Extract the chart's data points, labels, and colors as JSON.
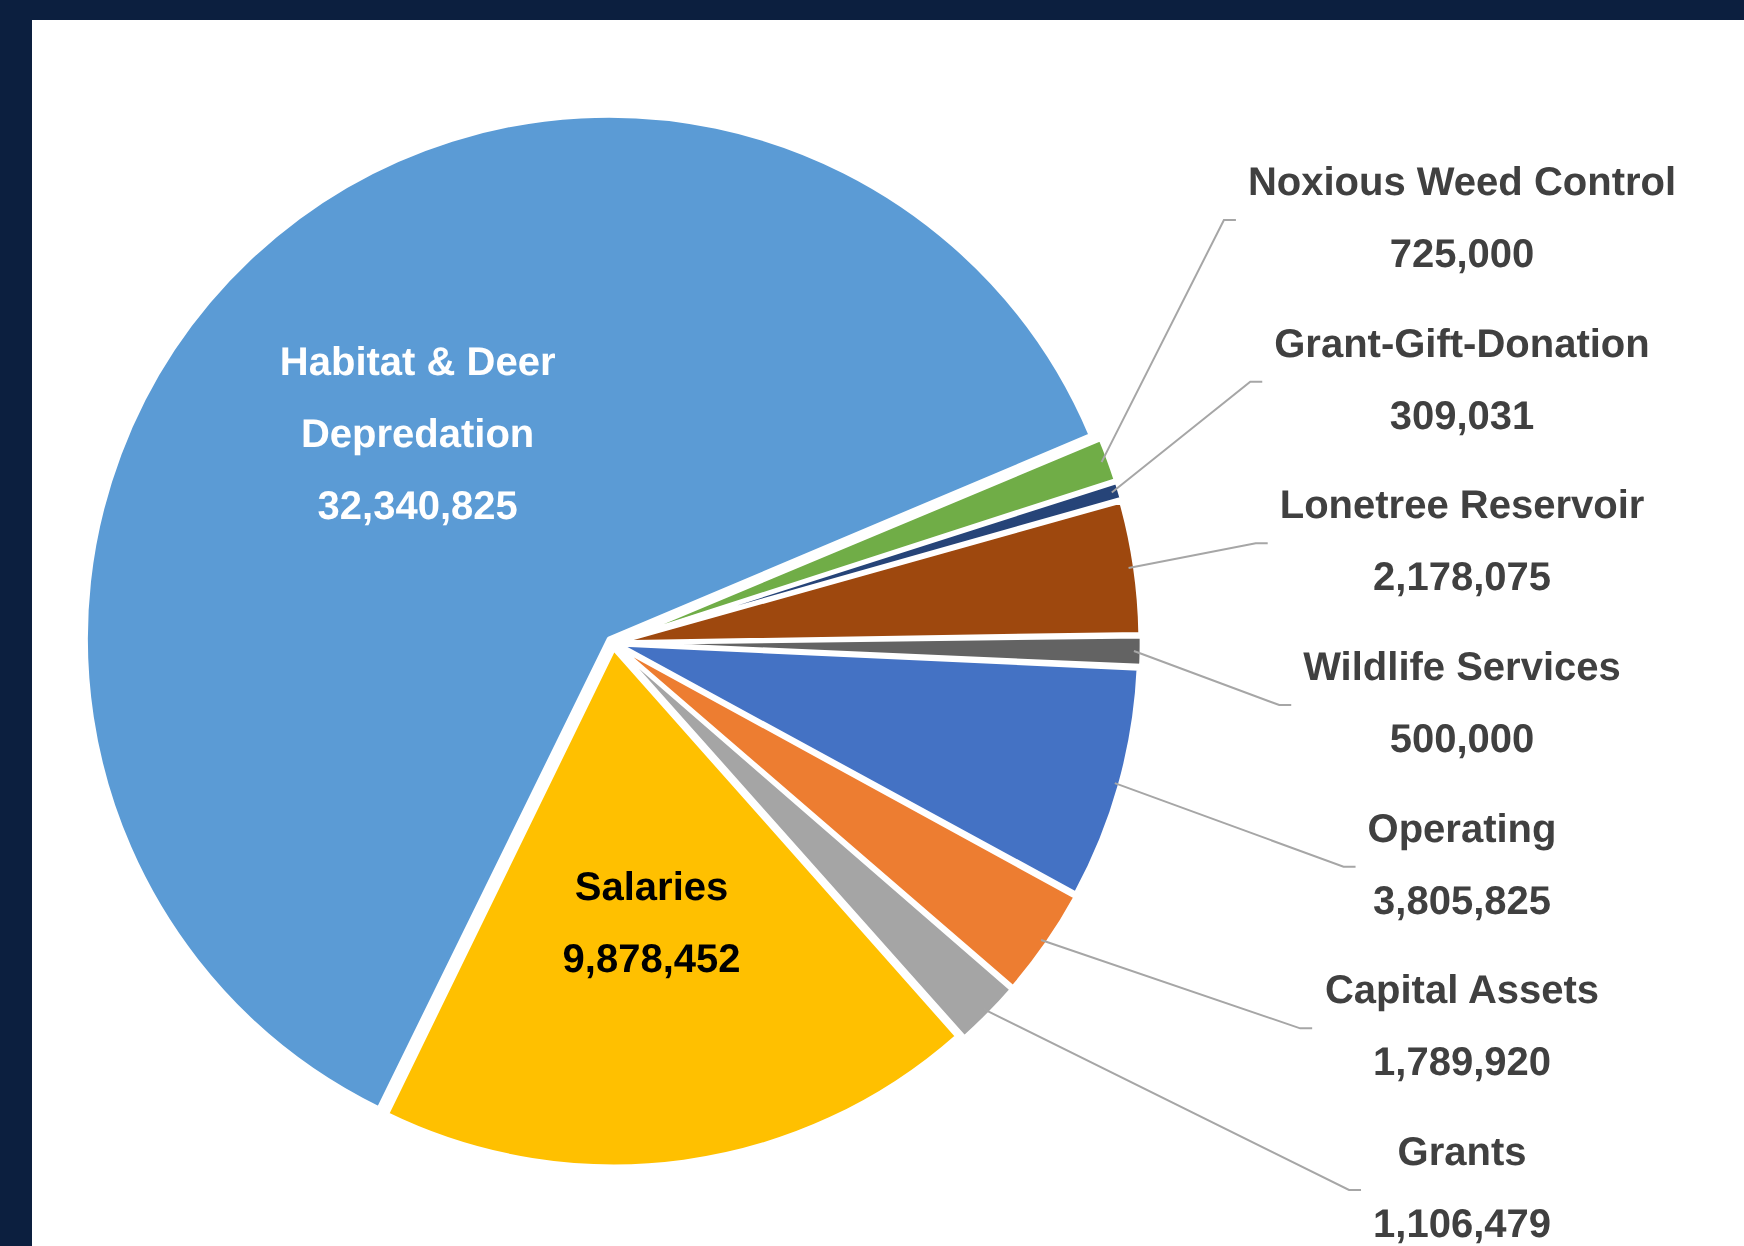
{
  "chart_data": {
    "type": "pie",
    "categories": [
      "Habitat & Deer Depredation",
      "Noxious Weed Control",
      "Grant-Gift-Donation",
      "Lonetree Reservoir",
      "Wildlife Services",
      "Operating",
      "Capital Assets",
      "Grants",
      "Salaries"
    ],
    "values": [
      32340825,
      725000,
      309031,
      2178075,
      500000,
      3805825,
      1789920,
      1106479,
      9878452
    ],
    "value_labels": [
      "32,340,825",
      "725,000",
      "309,031",
      "2,178,075",
      "500,000",
      "3,805,825",
      "1,789,920",
      "1,106,479",
      "9,878,452"
    ],
    "colors": [
      "#5b9bd5",
      "#70ad47",
      "#264478",
      "#9e480e",
      "#636363",
      "#4472c4",
      "#ed7d31",
      "#a5a5a5",
      "#ffc000"
    ],
    "legend": false
  }
}
